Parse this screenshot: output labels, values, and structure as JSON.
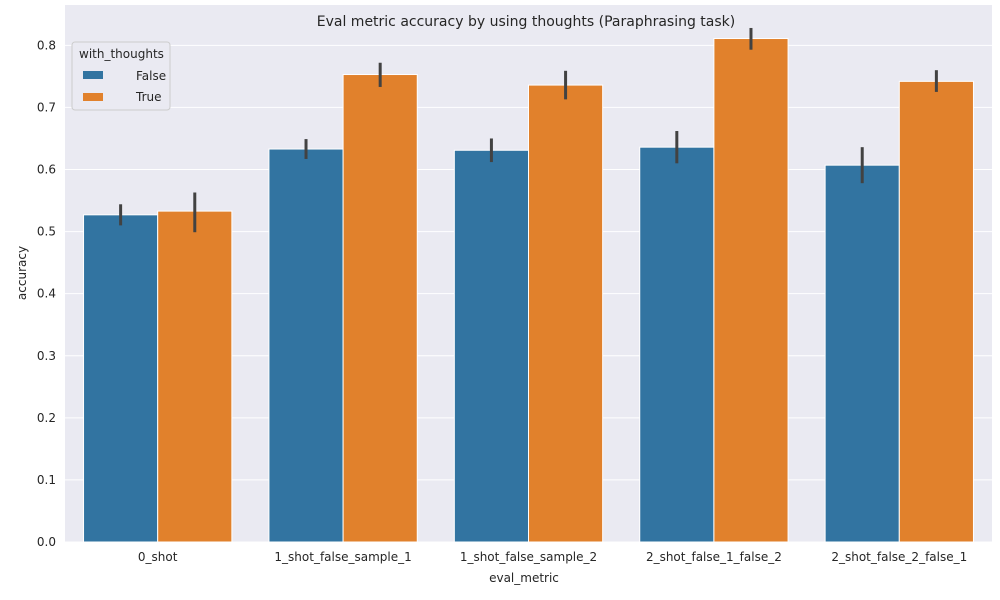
{
  "chart_data": {
    "type": "bar",
    "title": "Eval metric accuracy by using thoughts (Paraphrasing task)",
    "xlabel": "eval_metric",
    "ylabel": "accuracy",
    "ylim": [
      0,
      0.865
    ],
    "yticks": [
      "0.0",
      "0.1",
      "0.2",
      "0.3",
      "0.4",
      "0.5",
      "0.6",
      "0.7",
      "0.8"
    ],
    "grid": true,
    "legend": {
      "title": "with_thoughts",
      "position": "top-left"
    },
    "categories": [
      "0_shot",
      "1_shot_false_sample_1",
      "1_shot_false_sample_2",
      "2_shot_false_1_false_2",
      "2_shot_false_2_false_1"
    ],
    "series": [
      {
        "name": "False",
        "color": "#3274a1",
        "values": [
          0.527,
          0.633,
          0.631,
          0.636,
          0.607
        ],
        "err_low": [
          0.51,
          0.617,
          0.612,
          0.61,
          0.578
        ],
        "err_high": [
          0.544,
          0.649,
          0.65,
          0.662,
          0.636
        ]
      },
      {
        "name": "True",
        "color": "#e1812c",
        "values": [
          0.533,
          0.753,
          0.736,
          0.811,
          0.742
        ],
        "err_low": [
          0.499,
          0.733,
          0.713,
          0.793,
          0.725
        ],
        "err_high": [
          0.563,
          0.772,
          0.759,
          0.828,
          0.76
        ]
      }
    ]
  }
}
